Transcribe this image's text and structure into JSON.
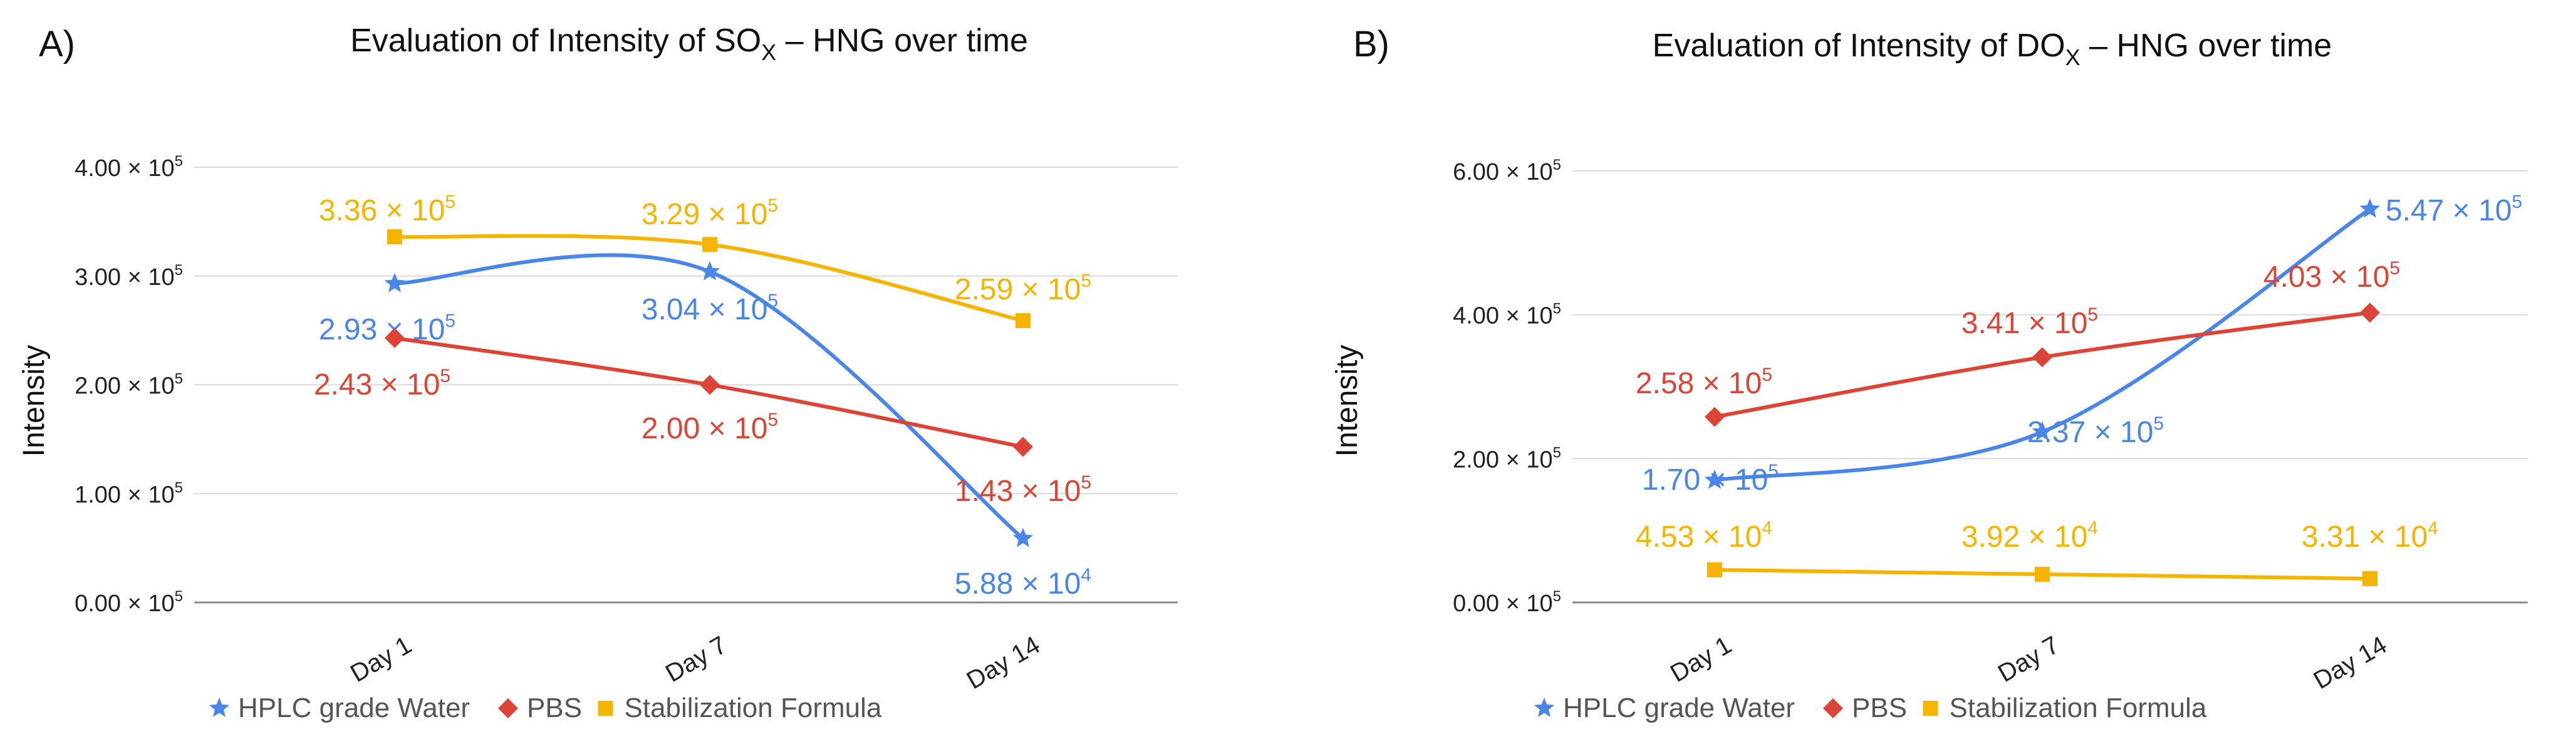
{
  "figure": {
    "panels": [
      {
        "label": "A)"
      },
      {
        "label": "B)"
      }
    ]
  },
  "chart_data": [
    {
      "panel": "A)",
      "type": "line",
      "title": "Evaluation of Intensity of SO",
      "title_sub": "X",
      "title_suffix": " – HNG over time",
      "xlabel": "",
      "ylabel": "Intensity",
      "categories": [
        "Day 1",
        "Day 7",
        "Day 14"
      ],
      "ylim": [
        0,
        400000
      ],
      "yticks": [
        {
          "value": 0,
          "mant": "0.00 × 10",
          "exp": "5"
        },
        {
          "value": 100000,
          "mant": "1.00 × 10",
          "exp": "5"
        },
        {
          "value": 200000,
          "mant": "2.00 × 10",
          "exp": "5"
        },
        {
          "value": 300000,
          "mant": "3.00 × 10",
          "exp": "5"
        },
        {
          "value": 400000,
          "mant": "4.00 × 10",
          "exp": "5"
        }
      ],
      "series": [
        {
          "name": "HPLC grade Water",
          "color": "#4a86e8",
          "marker": "star",
          "values": [
            293000,
            304000,
            58800
          ],
          "labels": [
            {
              "mant": "2.93 × 10",
              "exp": "5"
            },
            {
              "mant": "3.04 × 10",
              "exp": "5"
            },
            {
              "mant": "5.88 × 10",
              "exp": "4"
            }
          ]
        },
        {
          "name": "PBS",
          "color": "#db4437",
          "marker": "diamond",
          "values": [
            243000,
            200000,
            143000
          ],
          "labels": [
            {
              "mant": "2.43 × 10",
              "exp": "5"
            },
            {
              "mant": "2.00 × 10",
              "exp": "5"
            },
            {
              "mant": "1.43 × 10",
              "exp": "5"
            }
          ]
        },
        {
          "name": "Stabilization Formula",
          "color": "#f4b400",
          "marker": "square",
          "values": [
            336000,
            329000,
            259000
          ],
          "labels": [
            {
              "mant": "3.36 × 10",
              "exp": "5"
            },
            {
              "mant": "3.29 × 10",
              "exp": "5"
            },
            {
              "mant": "2.59 × 10",
              "exp": "5"
            }
          ]
        }
      ],
      "legend": "bottom",
      "grid": true
    },
    {
      "panel": "B)",
      "type": "line",
      "title": "Evaluation of Intensity of DO",
      "title_sub": "X",
      "title_suffix": " – HNG over time",
      "xlabel": "",
      "ylabel": "Intensity",
      "categories": [
        "Day 1",
        "Day 7",
        "Day 14"
      ],
      "ylim": [
        0,
        600000
      ],
      "yticks": [
        {
          "value": 0,
          "mant": "0.00 × 10",
          "exp": "5"
        },
        {
          "value": 200000,
          "mant": "2.00 × 10",
          "exp": "5"
        },
        {
          "value": 400000,
          "mant": "4.00 × 10",
          "exp": "5"
        },
        {
          "value": 600000,
          "mant": "6.00 × 10",
          "exp": "5"
        }
      ],
      "series": [
        {
          "name": "HPLC grade Water",
          "color": "#4a86e8",
          "marker": "star",
          "values": [
            170000,
            237000,
            547000
          ],
          "labels": [
            {
              "mant": "1.70 × 10",
              "exp": "5"
            },
            {
              "mant": "2.37 × 10",
              "exp": "5"
            },
            {
              "mant": "5.47 × 10",
              "exp": "5"
            }
          ]
        },
        {
          "name": "PBS",
          "color": "#db4437",
          "marker": "diamond",
          "values": [
            258000,
            341000,
            403000
          ],
          "labels": [
            {
              "mant": "2.58 × 10",
              "exp": "5"
            },
            {
              "mant": "3.41 × 10",
              "exp": "5"
            },
            {
              "mant": "4.03 × 10",
              "exp": "5"
            }
          ]
        },
        {
          "name": "Stabilization Formula",
          "color": "#f4b400",
          "marker": "square",
          "values": [
            45300,
            39200,
            33100
          ],
          "labels": [
            {
              "mant": "4.53 × 10",
              "exp": "4"
            },
            {
              "mant": "3.92 × 10",
              "exp": "4"
            },
            {
              "mant": "3.31 × 10",
              "exp": "4"
            }
          ]
        }
      ],
      "legend": "bottom",
      "grid": true
    }
  ]
}
